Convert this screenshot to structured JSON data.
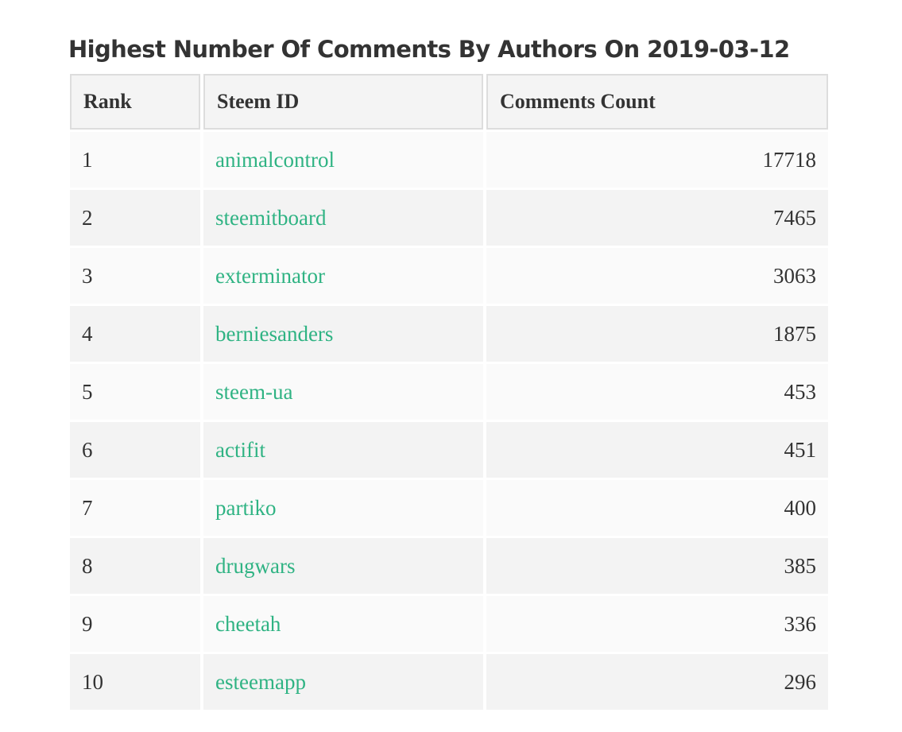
{
  "header": {
    "title": "Highest Number Of Comments By Authors On 2019-03-12"
  },
  "table": {
    "columns": [
      "Rank",
      "Steem ID",
      "Comments Count"
    ],
    "rows": [
      [
        1,
        "animalcontrol",
        17718
      ],
      [
        2,
        "steemitboard",
        7465
      ],
      [
        3,
        "exterminator",
        3063
      ],
      [
        4,
        "berniesanders",
        1875
      ],
      [
        5,
        "steem-ua",
        453
      ],
      [
        6,
        "actifit",
        451
      ],
      [
        7,
        "partiko",
        400
      ],
      [
        8,
        "drugwars",
        385
      ],
      [
        9,
        "cheetah",
        336
      ],
      [
        10,
        "esteemapp",
        296
      ]
    ]
  }
}
